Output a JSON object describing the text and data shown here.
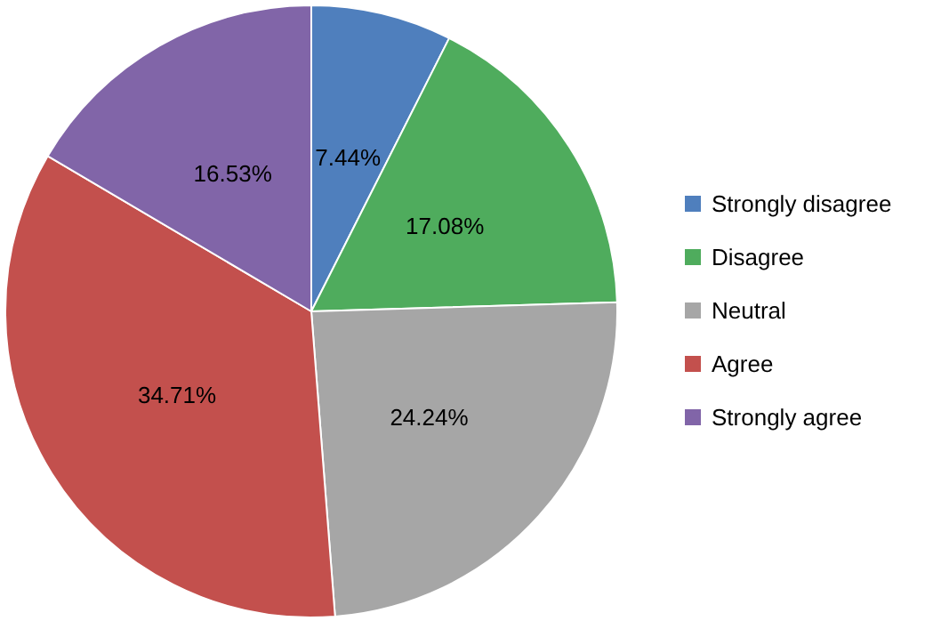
{
  "chart_data": {
    "type": "pie",
    "categories": [
      "Strongly disagree",
      "Disagree",
      "Neutral",
      "Agree",
      "Strongly agree"
    ],
    "values": [
      7.44,
      17.08,
      24.24,
      34.71,
      16.53
    ],
    "colors": [
      "#4f7fbd",
      "#4fac5d",
      "#a6a6a6",
      "#c3504d",
      "#8165a8"
    ],
    "value_labels": [
      "7.44%",
      "17.08%",
      "24.24%",
      "34.71%",
      "16.53%"
    ],
    "legend": "right"
  }
}
